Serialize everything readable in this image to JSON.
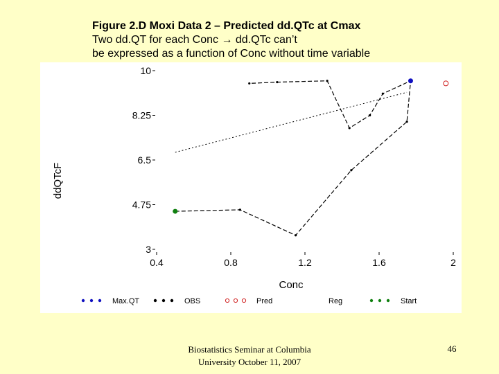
{
  "slide": {
    "title_line1": "Figure 2.D Moxi Data 2 – Predicted dd.QTc at Cmax",
    "title_line2": "Two dd.QT for each Conc → dd.QTc can’t",
    "title_line3": "be expressed as  a function of Conc without time variable",
    "footer_line1": "Biostatistics Seminar at Columbia",
    "footer_line2": "University October 11, 2007",
    "page_number": "46"
  },
  "chart_data": {
    "type": "line",
    "xlabel": "Conc",
    "ylabel": "ddQTcF",
    "xlim": [
      0.4,
      2.0
    ],
    "ylim": [
      3.0,
      10.0
    ],
    "x_ticks": [
      0.4,
      0.8,
      1.2,
      1.6,
      2.0
    ],
    "x_tick_labels": [
      "0.4",
      "0.8",
      "1.2",
      "1.6",
      "2"
    ],
    "y_ticks": [
      3.0,
      4.75,
      6.5,
      8.25,
      10.0
    ],
    "y_tick_labels": [
      "3",
      "4.75",
      "6.5",
      "8.25",
      "10"
    ],
    "grid": false,
    "legend_position": "bottom",
    "legend": [
      "Max.QT",
      "OBS",
      "Pred",
      "Reg",
      "Start"
    ],
    "colors": {
      "maxqt": "#1010c0",
      "obs": "#000000",
      "pred": "#d02020",
      "reg": "#000000",
      "start": "#108010"
    },
    "series": [
      {
        "name": "OBS",
        "style": "dashed-line",
        "points": [
          [
            0.5,
            4.49
          ],
          [
            0.85,
            4.55
          ],
          [
            1.15,
            3.55
          ],
          [
            1.45,
            6.1
          ],
          [
            1.75,
            8.0
          ],
          [
            1.77,
            9.6
          ],
          [
            1.62,
            9.1
          ],
          [
            1.55,
            8.25
          ],
          [
            1.44,
            7.75
          ],
          [
            1.32,
            9.6
          ],
          [
            1.05,
            9.55
          ],
          [
            0.9,
            9.5
          ]
        ]
      },
      {
        "name": "Reg",
        "style": "dotted-line",
        "points": [
          [
            0.5,
            6.8
          ],
          [
            1.75,
            9.15
          ]
        ]
      },
      {
        "name": "Max.QT",
        "style": "dot",
        "points": [
          [
            1.77,
            9.6
          ]
        ]
      },
      {
        "name": "Start",
        "style": "dot",
        "points": [
          [
            0.5,
            4.49
          ]
        ]
      },
      {
        "name": "Pred",
        "style": "open-circle",
        "points": [
          [
            1.96,
            9.5
          ]
        ]
      }
    ]
  }
}
